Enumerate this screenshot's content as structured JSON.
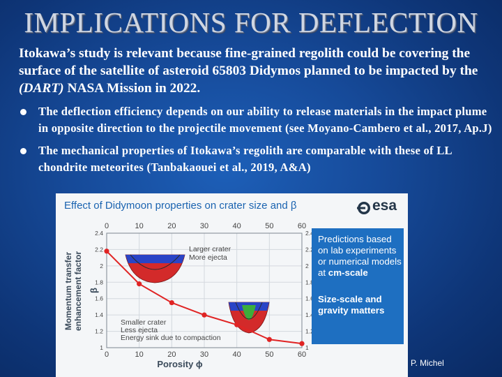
{
  "slide": {
    "title": "IMPLICATIONS FOR DEFLECTION",
    "intro_part1": "Itokawa’s study is relevant because fine-grained regolith could be covering the surface of the satellite of asteroid 65803 Didymos planned to be impacted by the ",
    "intro_em": "(DART)",
    "intro_part2": " NASA Mission in 2022.",
    "bullets": [
      "The deflection efficiency depends on our ability to release materials in the impact plume in opposite direction to the projectile movement (see Moyano-Cambero et al., 2017, Ap.J)",
      "The mechanical properties of Itokawa’s regolith are comparable with these of LL chondrite meteorites (Tanbakaouei et al., 2019, A&A)"
    ],
    "credit": "P. Michel"
  },
  "figure": {
    "logo_text": "esa",
    "callout_line1": "Predictions based on lab experiments or numerical models at ",
    "callout_bold1": "cm-scale",
    "callout_bold2": "Size-scale and gravity matters"
  },
  "colors": {
    "accent": "#1e6fc1",
    "curve": "#e02424",
    "title_blue": "#1a63b0"
  },
  "chart_data": {
    "type": "line",
    "title": "Effect of Didymoon properties on crater size and β",
    "xlabel": "Porosity ϕ",
    "ylabel": "Momentum transfer enhancement factor",
    "ylabel_symbol": "β",
    "xlim": [
      0,
      60
    ],
    "ylim": [
      1.0,
      2.4
    ],
    "x_ticks": [
      0,
      10,
      20,
      30,
      40,
      50,
      60
    ],
    "y_ticks": [
      1,
      1.2,
      1.4,
      1.6,
      1.8,
      2,
      2.2,
      2.4
    ],
    "grid": true,
    "series": [
      {
        "x": [
          0,
          10,
          20,
          30,
          40,
          50,
          60
        ],
        "values": [
          2.18,
          1.78,
          1.55,
          1.4,
          1.28,
          1.1,
          1.05
        ]
      }
    ],
    "annotations": {
      "large": [
        "Larger crater",
        "More ejecta"
      ],
      "small": [
        "Smaller crater",
        "Less ejecta",
        "Energy sink due to compaction"
      ]
    }
  }
}
